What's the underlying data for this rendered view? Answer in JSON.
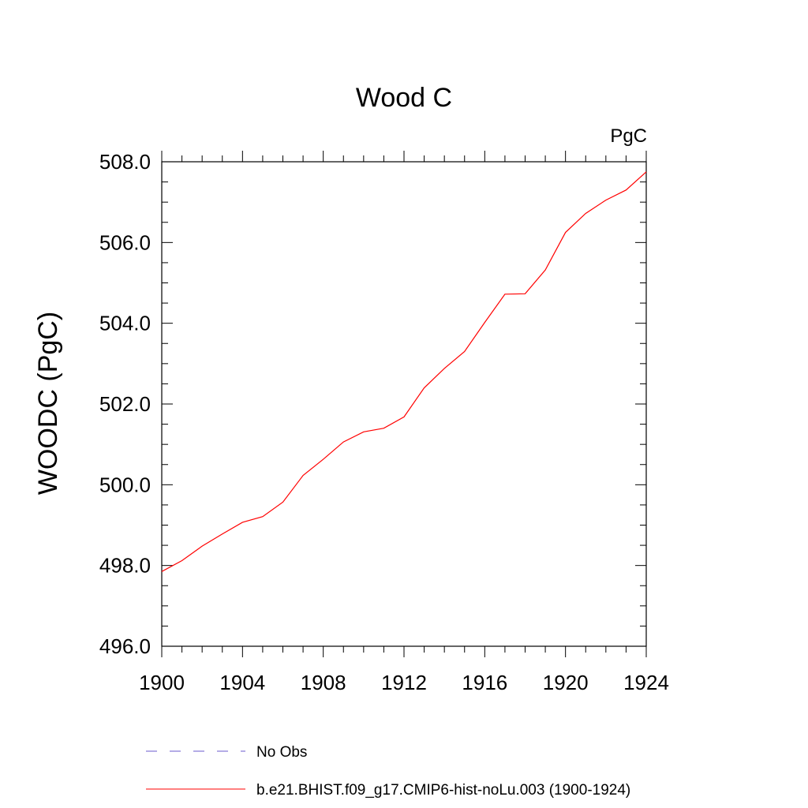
{
  "chart_data": {
    "type": "line",
    "title": "Wood C",
    "units": "PgC",
    "ylabel": "WOODC  (PgC)",
    "xlabel": "",
    "xlim": [
      1900,
      1924
    ],
    "ylim": [
      496.0,
      508.0
    ],
    "x_ticks": [
      "1900",
      "1904",
      "1908",
      "1912",
      "1916",
      "1920",
      "1924"
    ],
    "y_ticks": [
      "496.0",
      "498.0",
      "500.0",
      "502.0",
      "504.0",
      "506.0",
      "508.0"
    ],
    "x": [
      1900,
      1901,
      1902,
      1903,
      1904,
      1905,
      1906,
      1907,
      1908,
      1909,
      1910,
      1911,
      1912,
      1913,
      1914,
      1915,
      1916,
      1917,
      1918,
      1919,
      1920,
      1921,
      1922,
      1923,
      1924
    ],
    "series": [
      {
        "name": "b.e21.BHIST.f09_g17.CMIP6-hist-noLu.003 (1900-1924)",
        "color": "#ff0000",
        "style": "solid",
        "values": [
          497.85,
          498.12,
          498.48,
          498.78,
          499.07,
          499.21,
          499.57,
          500.23,
          500.63,
          501.06,
          501.31,
          501.4,
          501.68,
          502.4,
          502.88,
          503.3,
          504.02,
          504.72,
          504.73,
          505.32,
          506.25,
          506.72,
          507.05,
          507.3,
          507.75
        ]
      }
    ],
    "legend": [
      {
        "label": "No Obs",
        "color": "#6a5acd",
        "style": "dashed"
      },
      {
        "label": "b.e21.BHIST.f09_g17.CMIP6-hist-noLu.003 (1900-1924)",
        "color": "#ff0000",
        "style": "solid"
      }
    ]
  }
}
